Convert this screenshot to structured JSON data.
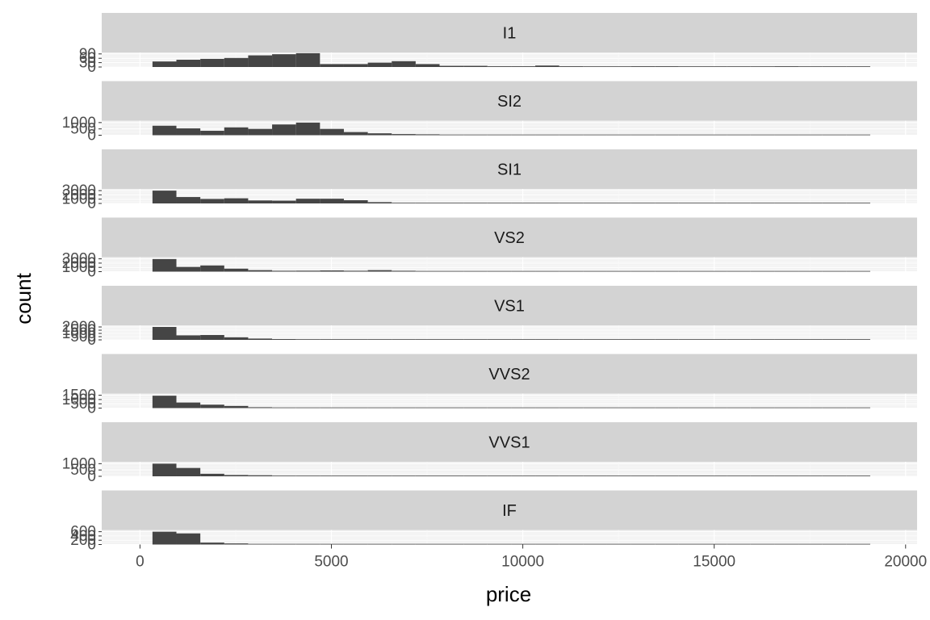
{
  "chart_data": {
    "type": "bar",
    "subtype": "faceted-histogram",
    "xlabel": "price",
    "ylabel": "count",
    "xlim": [
      -1000,
      20300
    ],
    "x_ticks": [
      0,
      5000,
      10000,
      15000,
      20000
    ],
    "x_tick_labels": [
      "0",
      "5000",
      "10000",
      "15000",
      "20000"
    ],
    "bin_width": 625,
    "bin_starts": [
      326,
      951,
      1576,
      2201,
      2826,
      3451,
      4076,
      4701,
      5326,
      5951,
      6576,
      7201,
      7826,
      8451,
      9076,
      9701,
      10326,
      10951,
      11576,
      12201,
      12826,
      13451,
      14076,
      14701,
      15326,
      15951,
      16576,
      17201,
      17826,
      18451
    ],
    "grid": true,
    "colors": {
      "bar": "#454545",
      "strip_background": "#d3d3d3",
      "panel_background": "#f2f2f2",
      "grid_major": "#ffffff",
      "grid_minor": "#fafafa",
      "axis_text": "#4d4d4d",
      "strip_text": "#1a1a1a"
    },
    "facets": [
      {
        "label": "I1",
        "y_ticks": [
          0,
          30,
          60,
          90
        ],
        "y_tick_labels": [
          "0",
          "30",
          "60",
          "90"
        ],
        "ylim": [
          0,
          100
        ],
        "values": [
          38,
          50,
          56,
          62,
          80,
          88,
          95,
          20,
          20,
          30,
          40,
          20,
          8,
          8,
          5,
          5,
          10,
          5,
          2,
          2,
          5,
          5,
          2,
          2,
          2,
          2,
          5,
          2,
          2,
          1
        ]
      },
      {
        "label": "SI2",
        "y_ticks": [
          0,
          500,
          1000
        ],
        "y_tick_labels": [
          "0",
          "500",
          "1000"
        ],
        "ylim": [
          0,
          1150
        ],
        "values": [
          750,
          540,
          350,
          620,
          500,
          850,
          1000,
          500,
          250,
          150,
          90,
          70,
          50,
          40,
          35,
          30,
          20,
          15,
          12,
          10,
          8,
          8,
          6,
          6,
          5,
          5,
          5,
          4,
          4,
          3
        ]
      },
      {
        "label": "SI1",
        "y_ticks": [
          0,
          1000,
          2000,
          3000
        ],
        "y_tick_labels": [
          "0",
          "1000",
          "2000",
          "3000"
        ],
        "ylim": [
          0,
          3400
        ],
        "values": [
          3000,
          1500,
          1050,
          1200,
          700,
          650,
          1100,
          1100,
          750,
          300,
          120,
          80,
          60,
          50,
          40,
          35,
          30,
          25,
          20,
          20,
          15,
          15,
          12,
          10,
          10,
          8,
          8,
          6,
          6,
          5
        ]
      },
      {
        "label": "VS2",
        "y_ticks": [
          0,
          1000,
          2000,
          3000
        ],
        "y_tick_labels": [
          "0",
          "1000",
          "2000",
          "3000"
        ],
        "ylim": [
          0,
          3400
        ],
        "values": [
          2950,
          1100,
          1450,
          700,
          350,
          200,
          220,
          280,
          200,
          350,
          200,
          150,
          120,
          100,
          80,
          70,
          60,
          50,
          45,
          40,
          35,
          30,
          25,
          20,
          18,
          15,
          12,
          10,
          8,
          6
        ]
      },
      {
        "label": "VS1",
        "y_ticks": [
          0,
          500,
          1000,
          1500,
          2000
        ],
        "y_tick_labels": [
          "0",
          "500",
          "1000",
          "1500",
          "2000"
        ],
        "ylim": [
          0,
          2250
        ],
        "values": [
          2000,
          700,
          750,
          400,
          200,
          120,
          100,
          90,
          80,
          70,
          60,
          55,
          50,
          40,
          35,
          30,
          30,
          25,
          25,
          20,
          20,
          18,
          15,
          15,
          12,
          10,
          10,
          8,
          6,
          5
        ]
      },
      {
        "label": "VVS2",
        "y_ticks": [
          0,
          500,
          1000,
          1500
        ],
        "y_tick_labels": [
          "0",
          "500",
          "1000",
          "1500"
        ],
        "ylim": [
          0,
          1700
        ],
        "values": [
          1450,
          650,
          400,
          250,
          100,
          60,
          50,
          45,
          40,
          35,
          30,
          25,
          20,
          18,
          15,
          12,
          12,
          10,
          10,
          8,
          8,
          6,
          5,
          5,
          4,
          4,
          3,
          3,
          2,
          2
        ]
      },
      {
        "label": "VVS1",
        "y_ticks": [
          0,
          500,
          1000
        ],
        "y_tick_labels": [
          "0",
          "500",
          "1000"
        ],
        "ylim": [
          0,
          1150
        ],
        "values": [
          1000,
          660,
          200,
          100,
          80,
          50,
          40,
          35,
          30,
          25,
          20,
          15,
          15,
          12,
          10,
          10,
          8,
          8,
          6,
          5,
          5,
          4,
          4,
          3,
          3,
          2,
          2,
          2,
          1,
          1
        ]
      },
      {
        "label": "IF",
        "y_ticks": [
          0,
          200,
          400,
          600
        ],
        "y_tick_labels": [
          "0",
          "200",
          "400",
          "600"
        ],
        "ylim": [
          0,
          680
        ],
        "values": [
          600,
          520,
          90,
          50,
          30,
          20,
          15,
          12,
          10,
          8,
          8,
          6,
          5,
          5,
          4,
          4,
          3,
          3,
          3,
          2,
          2,
          2,
          2,
          1,
          1,
          1,
          1,
          1,
          1,
          1
        ]
      }
    ]
  }
}
